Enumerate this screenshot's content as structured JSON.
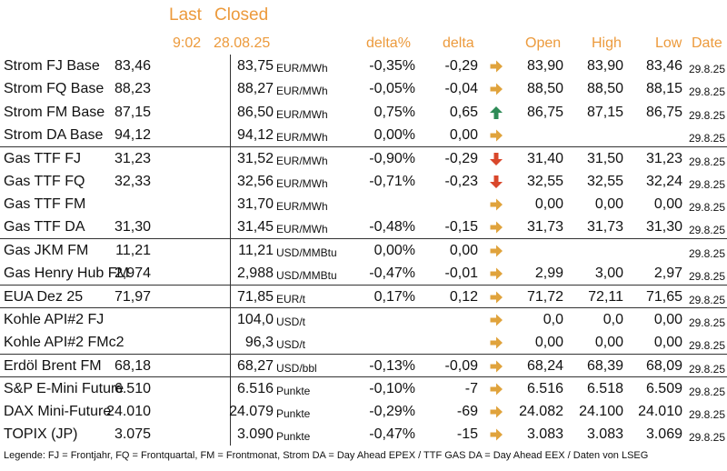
{
  "header": {
    "last": "Last",
    "closed": "Closed",
    "last_time": "9:02",
    "closed_date": "28.08.25",
    "pct": "delta%",
    "delta": "delta",
    "open": "Open",
    "high": "High",
    "low": "Low",
    "date": "Date"
  },
  "colors": {
    "header": "#ec9a3c",
    "arrow_right": "#e0a33c",
    "arrow_up": "#2e8b57",
    "arrow_down": "#d9472b"
  },
  "rows": [
    {
      "name": "Strom FJ Base",
      "last": "83,46",
      "closed": "83,75",
      "unit": "EUR/MWh",
      "pct": "-0,35%",
      "delta": "-0,29",
      "arrow": "right",
      "open": "83,90",
      "high": "83,90",
      "low": "83,46",
      "date": "29.8.25",
      "sep": false
    },
    {
      "name": "Strom FQ Base",
      "last": "88,23",
      "closed": "88,27",
      "unit": "EUR/MWh",
      "pct": "-0,05%",
      "delta": "-0,04",
      "arrow": "right",
      "open": "88,50",
      "high": "88,50",
      "low": "88,15",
      "date": "29.8.25",
      "sep": false
    },
    {
      "name": "Strom FM Base",
      "last": "87,15",
      "closed": "86,50",
      "unit": "EUR/MWh",
      "pct": "0,75%",
      "delta": "0,65",
      "arrow": "up",
      "open": "86,75",
      "high": "87,15",
      "low": "86,75",
      "date": "29.8.25",
      "sep": false
    },
    {
      "name": "Strom DA Base",
      "last": "94,12",
      "closed": "94,12",
      "unit": "EUR/MWh",
      "pct": "0,00%",
      "delta": "0,00",
      "arrow": "right",
      "open": "",
      "high": "",
      "low": "",
      "date": "29.8.25",
      "sep": false
    },
    {
      "name": "Gas TTF FJ",
      "last": "31,23",
      "closed": "31,52",
      "unit": "EUR/MWh",
      "pct": "-0,90%",
      "delta": "-0,29",
      "arrow": "down",
      "open": "31,40",
      "high": "31,50",
      "low": "31,23",
      "date": "29.8.25",
      "sep": true
    },
    {
      "name": "Gas TTF FQ",
      "last": "32,33",
      "closed": "32,56",
      "unit": "EUR/MWh",
      "pct": "-0,71%",
      "delta": "-0,23",
      "arrow": "down",
      "open": "32,55",
      "high": "32,55",
      "low": "32,24",
      "date": "29.8.25",
      "sep": false
    },
    {
      "name": "Gas TTF FM",
      "last": "",
      "closed": "31,70",
      "unit": "EUR/MWh",
      "pct": "",
      "delta": "",
      "arrow": "right",
      "open": "0,00",
      "high": "0,00",
      "low": "0,00",
      "date": "29.8.25",
      "sep": false
    },
    {
      "name": "Gas TTF DA",
      "last": "31,30",
      "closed": "31,45",
      "unit": "EUR/MWh",
      "pct": "-0,48%",
      "delta": "-0,15",
      "arrow": "right",
      "open": "31,73",
      "high": "31,73",
      "low": "31,30",
      "date": "29.8.25",
      "sep": false
    },
    {
      "name": "Gas JKM FM",
      "last": "11,21",
      "closed": "11,21",
      "unit": "USD/MMBtu",
      "pct": "0,00%",
      "delta": "0,00",
      "arrow": "right",
      "open": "",
      "high": "",
      "low": "",
      "date": "29.8.25",
      "sep": true
    },
    {
      "name": "Gas Henry Hub FM",
      "last": "2,974",
      "closed": "2,988",
      "unit": "USD/MMBtu",
      "pct": "-0,47%",
      "delta": "-0,01",
      "arrow": "right",
      "open": "2,99",
      "high": "3,00",
      "low": "2,97",
      "date": "29.8.25",
      "sep": false
    },
    {
      "name": "EUA Dez 25",
      "last": "71,97",
      "closed": "71,85",
      "unit": "EUR/t",
      "pct": "0,17%",
      "delta": "0,12",
      "arrow": "right",
      "open": "71,72",
      "high": "72,11",
      "low": "71,65",
      "date": "29.8.25",
      "sep": true
    },
    {
      "name": "Kohle API#2 FJ",
      "last": "",
      "closed": "104,0",
      "unit": "USD/t",
      "pct": "",
      "delta": "",
      "arrow": "right",
      "open": "0,0",
      "high": "0,0",
      "low": "0,00",
      "date": "29.8.25",
      "sep": true
    },
    {
      "name": "Kohle API#2 FMc2",
      "last": "",
      "closed": "96,3",
      "unit": "USD/t",
      "pct": "",
      "delta": "",
      "arrow": "right",
      "open": "0,00",
      "high": "0,00",
      "low": "0,00",
      "date": "29.8.25",
      "sep": false
    },
    {
      "name": "Erdöl Brent FM",
      "last": "68,18",
      "closed": "68,27",
      "unit": "USD/bbl",
      "pct": "-0,13%",
      "delta": "-0,09",
      "arrow": "right",
      "open": "68,24",
      "high": "68,39",
      "low": "68,09",
      "date": "29.8.25",
      "sep": true
    },
    {
      "name": "S&P E-Mini Future",
      "last": "6.510",
      "closed": "6.516",
      "unit": "Punkte",
      "pct": "-0,10%",
      "delta": "-7",
      "arrow": "right",
      "open": "6.516",
      "high": "6.518",
      "low": "6.509",
      "date": "29.8.25",
      "sep": true
    },
    {
      "name": "DAX Mini-Future",
      "last": "24.010",
      "closed": "24.079",
      "unit": "Punkte",
      "pct": "-0,29%",
      "delta": "-69",
      "arrow": "right",
      "open": "24.082",
      "high": "24.100",
      "low": "24.010",
      "date": "29.8.25",
      "sep": false
    },
    {
      "name": "TOPIX (JP)",
      "last": "3.075",
      "closed": "3.090",
      "unit": "Punkte",
      "pct": "-0,47%",
      "delta": "-15",
      "arrow": "right",
      "open": "3.083",
      "high": "3.083",
      "low": "3.069",
      "date": "29.8.25",
      "sep": false
    }
  ],
  "legend": "Legende: FJ = Frontjahr, FQ = Frontquartal, FM = Frontmonat, Strom DA = Day Ahead EPEX / TTF GAS DA = Day Ahead EEX / Daten von LSEG"
}
